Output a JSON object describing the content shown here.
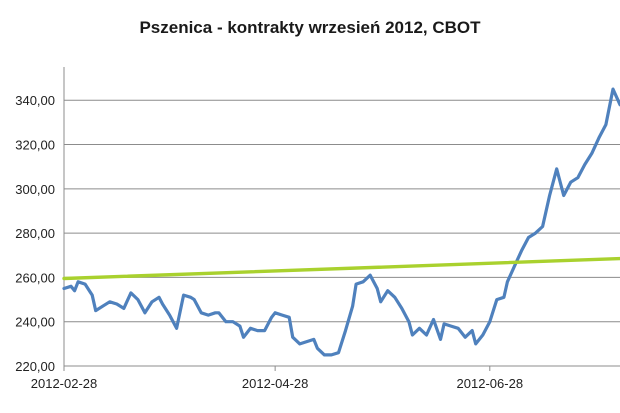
{
  "chart_data": {
    "type": "line",
    "title": "Pszenica - kontrakty wrzesień 2012, CBOT",
    "xlabel": "",
    "ylabel": "",
    "ylim": [
      220,
      355
    ],
    "y_ticks": [
      "220,00",
      "240,00",
      "260,00",
      "280,00",
      "300,00",
      "320,00",
      "340,00"
    ],
    "y_tick_values": [
      220,
      240,
      260,
      280,
      300,
      320,
      340
    ],
    "x_ticks": [
      "2012-02-28",
      "2012-04-28",
      "2012-06-28"
    ],
    "x_tick_dates": [
      "2012-02-28",
      "2012-04-28",
      "2012-06-28"
    ],
    "xlim": [
      "2012-02-28",
      "2012-08-04"
    ],
    "grid": {
      "horizontal": true,
      "vertical": false
    },
    "legend": "none",
    "series": [
      {
        "color": "#4f81bd",
        "x": [
          "2012-02-28",
          "2012-03-01",
          "2012-03-02",
          "2012-03-03",
          "2012-03-05",
          "2012-03-07",
          "2012-03-08",
          "2012-03-10",
          "2012-03-12",
          "2012-03-14",
          "2012-03-16",
          "2012-03-18",
          "2012-03-20",
          "2012-03-22",
          "2012-03-24",
          "2012-03-26",
          "2012-03-27",
          "2012-03-29",
          "2012-03-31",
          "2012-04-02",
          "2012-04-04",
          "2012-04-05",
          "2012-04-07",
          "2012-04-09",
          "2012-04-11",
          "2012-04-12",
          "2012-04-14",
          "2012-04-16",
          "2012-04-18",
          "2012-04-19",
          "2012-04-21",
          "2012-04-23",
          "2012-04-25",
          "2012-04-27",
          "2012-04-28",
          "2012-04-30",
          "2012-05-02",
          "2012-05-03",
          "2012-05-05",
          "2012-05-07",
          "2012-05-09",
          "2012-05-10",
          "2012-05-12",
          "2012-05-14",
          "2012-05-16",
          "2012-05-18",
          "2012-05-20",
          "2012-05-21",
          "2012-05-23",
          "2012-05-25",
          "2012-05-27",
          "2012-05-28",
          "2012-05-30",
          "2012-06-01",
          "2012-06-03",
          "2012-06-05",
          "2012-06-06",
          "2012-06-08",
          "2012-06-10",
          "2012-06-12",
          "2012-06-14",
          "2012-06-15",
          "2012-06-17",
          "2012-06-19",
          "2012-06-21",
          "2012-06-23",
          "2012-06-24",
          "2012-06-26",
          "2012-06-28",
          "2012-06-30",
          "2012-07-02",
          "2012-07-03",
          "2012-07-05",
          "2012-07-07",
          "2012-07-09",
          "2012-07-11",
          "2012-07-13",
          "2012-07-15",
          "2012-07-17",
          "2012-07-19",
          "2012-07-21",
          "2012-07-23",
          "2012-07-25",
          "2012-07-27",
          "2012-07-29",
          "2012-07-31",
          "2012-08-02",
          "2012-08-04"
        ],
        "values": [
          255,
          256,
          254,
          258,
          257,
          252,
          245,
          247,
          249,
          248,
          246,
          253,
          250,
          244,
          249,
          251,
          248,
          243,
          237,
          252,
          251,
          250,
          244,
          243,
          244,
          244,
          240,
          240,
          238,
          233,
          237,
          236,
          236,
          242,
          244,
          243,
          242,
          233,
          230,
          231,
          232,
          228,
          225,
          225,
          226,
          236,
          247,
          257,
          258,
          261,
          255,
          249,
          254,
          251,
          246,
          240,
          234,
          237,
          234,
          241,
          232,
          239,
          238,
          237,
          233,
          236,
          230,
          234,
          240,
          250,
          251,
          258,
          265,
          272,
          278,
          280,
          283,
          297,
          309,
          297,
          303,
          305,
          311,
          316,
          323,
          329,
          345,
          338
        ]
      },
      {
        "color": "#a9d12e",
        "x": [
          "2012-02-28",
          "2012-08-04"
        ],
        "values": [
          259.5,
          268.5
        ]
      }
    ]
  }
}
